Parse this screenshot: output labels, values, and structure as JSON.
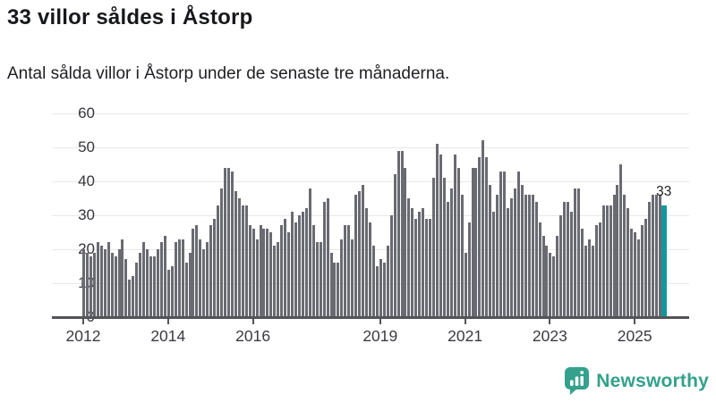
{
  "header": {
    "title": "33 villor såldes i Åstorp",
    "subtitle": "Antal sålda villor i Åstorp under de senaste tre månaderna."
  },
  "chart_data": {
    "type": "bar",
    "title": "33 villor såldes i Åstorp",
    "subtitle": "Antal sålda villor i Åstorp under de senaste tre månaderna.",
    "unit": "sålda villor (rullande 3 månader)",
    "x_start": "2012-01",
    "x_end": "2025-09",
    "values": [
      20,
      19,
      18,
      19,
      22,
      21,
      20,
      22,
      19,
      18,
      20,
      23,
      17,
      11,
      12,
      16,
      19,
      22,
      20,
      18,
      18,
      20,
      22,
      24,
      14,
      15,
      22,
      23,
      23,
      16,
      19,
      26,
      27,
      23,
      20,
      22,
      27,
      29,
      33,
      38,
      44,
      44,
      43,
      37,
      35,
      33,
      33,
      27,
      26,
      23,
      27,
      26,
      26,
      25,
      21,
      22,
      27,
      29,
      25,
      31,
      28,
      30,
      31,
      32,
      38,
      27,
      22,
      22,
      34,
      35,
      19,
      16,
      16,
      23,
      27,
      27,
      23,
      36,
      37,
      39,
      32,
      28,
      21,
      15,
      17,
      16,
      21,
      30,
      42,
      49,
      49,
      44,
      35,
      32,
      29,
      31,
      32,
      29,
      29,
      41,
      51,
      48,
      41,
      34,
      38,
      48,
      44,
      36,
      19,
      28,
      44,
      44,
      47,
      52,
      47,
      39,
      31,
      36,
      43,
      43,
      32,
      35,
      38,
      43,
      39,
      36,
      36,
      36,
      34,
      28,
      24,
      21,
      19,
      18,
      24,
      30,
      34,
      34,
      31,
      38,
      38,
      26,
      21,
      23,
      21,
      27,
      28,
      33,
      33,
      33,
      36,
      39,
      45,
      36,
      32,
      26,
      25,
      23,
      27,
      29,
      34,
      36,
      36,
      36,
      33
    ],
    "highlight_index": 164,
    "highlight_value": 33,
    "annotation_label": "33",
    "y_ticks": [
      0,
      10,
      20,
      30,
      40,
      50,
      60
    ],
    "ylim": [
      0,
      61
    ],
    "grid": true,
    "x_ticks": [
      {
        "label": "2012",
        "month": 0
      },
      {
        "label": "2014",
        "month": 24
      },
      {
        "label": "2016",
        "month": 48
      },
      {
        "label": "2019",
        "month": 84
      },
      {
        "label": "2021",
        "month": 108
      },
      {
        "label": "2023",
        "month": 132
      },
      {
        "label": "2025",
        "month": 156
      }
    ],
    "colors": {
      "bar": "#6a6a72",
      "highlight": "#12989b",
      "grid": "#e8e8e8",
      "axis": "#53545a"
    }
  },
  "footer": {
    "brand": "Newsworthy",
    "logo_icon": "newsworthy-speech-bubble-chart-icon",
    "brand_color": "#34a18c"
  }
}
